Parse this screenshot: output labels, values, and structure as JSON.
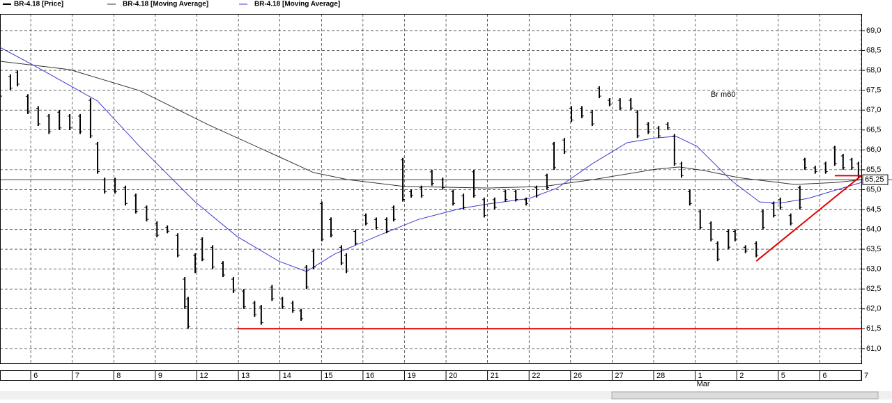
{
  "chart_data": {
    "type": "ohlc",
    "legend": [
      "BR-4.18 [Price]",
      "BR-4.18 [Moving Average]",
      "BR-4.18 [Moving Average]"
    ],
    "annotation": "Br m60",
    "categories": [
      "6",
      "7",
      "8",
      "9",
      "12",
      "13",
      "14",
      "15",
      "16",
      "19",
      "20",
      "21",
      "22",
      "26",
      "27",
      "28",
      "1",
      "2",
      "5",
      "6",
      "7"
    ],
    "month_label": "Mar",
    "xlim": [
      -0.74,
      20
    ],
    "ylim": [
      60.63,
      69.42
    ],
    "yticks": [
      {
        "value": 61.0,
        "label": "61,0"
      },
      {
        "value": 61.5,
        "label": "61,5"
      },
      {
        "value": 62.0,
        "label": "62,0"
      },
      {
        "value": 62.5,
        "label": "62,5"
      },
      {
        "value": 63.0,
        "label": "63,0"
      },
      {
        "value": 63.5,
        "label": "63,5"
      },
      {
        "value": 64.0,
        "label": "64,0"
      },
      {
        "value": 64.5,
        "label": "64,5"
      },
      {
        "value": 65.0,
        "label": "65,0"
      },
      {
        "value": 65.5,
        "label": "65,5"
      },
      {
        "value": 66.0,
        "label": "66,0"
      },
      {
        "value": 66.5,
        "label": "66,5"
      },
      {
        "value": 67.0,
        "label": "67,0"
      },
      {
        "value": 67.5,
        "label": "67,5"
      },
      {
        "value": 68.0,
        "label": "68,0"
      },
      {
        "value": 68.5,
        "label": "68,5"
      },
      {
        "value": 69.0,
        "label": "69,0"
      }
    ],
    "grid": true,
    "last_value": {
      "value": 65.25,
      "label": "65,25"
    },
    "price": {
      "name": "BR-4.18 [Price]",
      "color": "#000000",
      "x": [
        -0.74,
        -0.49,
        -0.32,
        -0.07,
        0.18,
        0.44,
        0.69,
        0.94,
        1.19,
        1.44,
        1.61,
        1.78,
        2.03,
        2.28,
        2.53,
        2.79,
        3.04,
        3.29,
        3.54,
        3.71,
        3.79,
        3.96,
        4.13,
        4.38,
        4.63,
        4.88,
        5.13,
        5.39,
        5.55,
        5.81,
        6.06,
        6.31,
        6.51,
        6.64,
        6.81,
        7.01,
        7.23,
        7.48,
        7.6,
        7.82,
        8.07,
        8.32,
        8.57,
        8.74,
        8.96,
        9.16,
        9.41,
        9.66,
        9.92,
        10.17,
        10.42,
        10.67,
        10.92,
        11.17,
        11.43,
        11.68,
        11.93,
        12.18,
        12.43,
        12.6,
        12.85,
        13.02,
        13.27,
        13.52,
        13.69,
        13.94,
        14.19,
        14.45,
        14.61,
        14.87,
        15.12,
        15.34,
        15.5,
        15.67,
        15.87,
        16.12,
        16.38,
        16.54,
        16.8,
        16.96,
        17.21,
        17.47,
        17.63,
        17.89,
        18.05,
        18.3,
        18.52,
        18.64,
        18.89,
        19.14,
        19.36,
        19.56,
        19.77,
        19.93
      ],
      "high": [
        67.8,
        67.9,
        68.0,
        67.4,
        67.1,
        66.9,
        67.0,
        66.9,
        66.9,
        67.3,
        66.2,
        65.3,
        65.3,
        65.1,
        64.9,
        64.6,
        64.2,
        64.1,
        63.9,
        62.8,
        62.3,
        63.4,
        63.8,
        63.6,
        63.2,
        62.8,
        62.5,
        62.2,
        62.1,
        62.6,
        62.3,
        62.2,
        62.0,
        63.1,
        63.5,
        64.7,
        64.3,
        63.6,
        63.4,
        64.0,
        64.4,
        64.3,
        64.3,
        64.6,
        65.8,
        65.0,
        65.1,
        65.5,
        65.3,
        65.0,
        64.9,
        65.5,
        64.8,
        64.8,
        65.0,
        65.0,
        64.8,
        65.1,
        65.4,
        66.2,
        66.3,
        67.1,
        67.1,
        67.0,
        67.6,
        67.3,
        67.3,
        67.3,
        67.0,
        66.7,
        66.6,
        66.7,
        66.4,
        65.7,
        65.0,
        64.5,
        64.2,
        63.7,
        64.0,
        64.0,
        63.6,
        63.7,
        64.5,
        64.7,
        64.8,
        64.4,
        65.1,
        65.8,
        65.6,
        65.7,
        66.1,
        65.9,
        65.8,
        65.7
      ],
      "low": [
        67.3,
        67.5,
        67.6,
        66.9,
        66.6,
        66.4,
        66.5,
        66.5,
        66.4,
        66.3,
        65.4,
        64.9,
        64.9,
        64.6,
        64.4,
        64.2,
        63.8,
        63.9,
        63.3,
        62.0,
        61.5,
        62.9,
        63.2,
        63.0,
        62.8,
        62.4,
        62.0,
        61.8,
        61.6,
        62.2,
        62.0,
        61.9,
        61.7,
        62.5,
        63.0,
        63.7,
        63.8,
        63.1,
        62.9,
        63.6,
        64.1,
        64.0,
        63.9,
        64.2,
        64.7,
        64.8,
        64.8,
        65.1,
        65.0,
        64.6,
        64.5,
        64.8,
        64.3,
        64.5,
        64.7,
        64.7,
        64.6,
        64.8,
        65.0,
        65.5,
        65.9,
        66.7,
        66.8,
        66.6,
        67.3,
        67.1,
        67.0,
        67.0,
        66.3,
        66.4,
        66.3,
        66.5,
        65.6,
        65.3,
        64.6,
        64.0,
        63.7,
        63.2,
        63.5,
        63.7,
        63.4,
        63.3,
        64.0,
        64.3,
        64.5,
        64.1,
        64.5,
        65.5,
        65.4,
        65.4,
        65.6,
        65.5,
        65.5,
        65.3
      ]
    },
    "series": [
      {
        "name": "BR-4.18 [Moving Average]",
        "color": "#333333",
        "x": [
          -0.74,
          0.94,
          2.62,
          4.3,
          5.97,
          6.81,
          7.65,
          8.99,
          11.01,
          12.35,
          13.52,
          15.03,
          15.62,
          16.21,
          17.05,
          18.39,
          19.4,
          20
        ],
        "values": [
          68.23,
          68.02,
          67.49,
          66.62,
          65.83,
          65.43,
          65.25,
          65.08,
          65.04,
          65.08,
          65.25,
          65.51,
          65.57,
          65.48,
          65.3,
          65.13,
          65.18,
          65.25
        ]
      },
      {
        "name": "BR-4.18 [Moving Average]",
        "color": "#3b3bd6",
        "x": [
          -0.74,
          0.1,
          1.61,
          2.62,
          3.96,
          4.97,
          5.97,
          6.64,
          7.32,
          8.32,
          9.33,
          10.34,
          11.01,
          12.01,
          12.68,
          13.52,
          14.36,
          15.03,
          15.54,
          16.04,
          16.88,
          17.55,
          18.05,
          18.72,
          20
        ],
        "values": [
          68.58,
          68.11,
          67.23,
          66.09,
          64.69,
          63.82,
          63.2,
          62.94,
          63.38,
          63.82,
          64.25,
          64.52,
          64.64,
          64.78,
          65.04,
          65.65,
          66.18,
          66.3,
          66.34,
          66.09,
          65.22,
          64.69,
          64.66,
          64.78,
          65.18
        ]
      }
    ],
    "drawn_lines": [
      {
        "color": "#e00000",
        "x": [
          4.97,
          20
        ],
        "values": [
          61.5,
          61.5
        ]
      },
      {
        "color": "#e00000",
        "x": [
          17.47,
          20
        ],
        "values": [
          63.2,
          65.35
        ]
      },
      {
        "color": "#e00000",
        "x": [
          19.36,
          20
        ],
        "values": [
          65.35,
          65.35
        ]
      }
    ]
  }
}
